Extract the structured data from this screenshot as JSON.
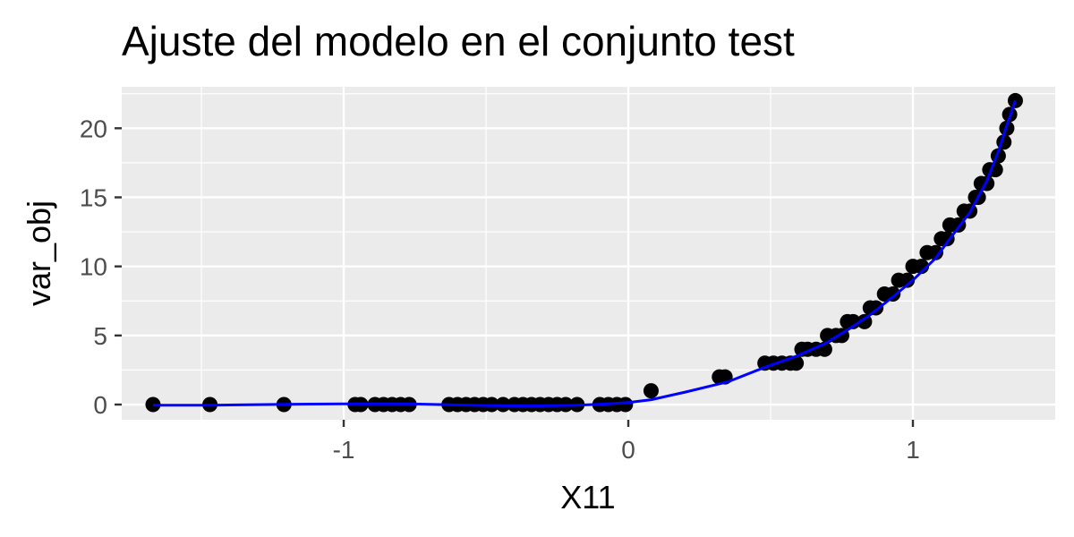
{
  "chart_data": {
    "type": "scatter",
    "title": "Ajuste del modelo en el conjunto test",
    "xlabel": "X11",
    "ylabel": "var_obj",
    "xlim": [
      -1.78,
      1.5
    ],
    "ylim": [
      -1.1,
      23
    ],
    "x_ticks": [
      {
        "value": -1,
        "label": "-1"
      },
      {
        "value": 0,
        "label": "0"
      },
      {
        "value": 1,
        "label": "1"
      }
    ],
    "y_ticks": [
      {
        "value": 0,
        "label": "0"
      },
      {
        "value": 5,
        "label": "5"
      },
      {
        "value": 10,
        "label": "10"
      },
      {
        "value": 15,
        "label": "15"
      },
      {
        "value": 20,
        "label": "20"
      }
    ],
    "grid": true,
    "colors": {
      "panel": "#ebebeb",
      "grid": "#ffffff",
      "points": "#000000",
      "fit_line": "#0000ff"
    },
    "points": [
      [
        -1.67,
        0
      ],
      [
        -1.47,
        0
      ],
      [
        -1.21,
        0
      ],
      [
        -0.96,
        0
      ],
      [
        -0.94,
        0
      ],
      [
        -0.89,
        0
      ],
      [
        -0.86,
        0
      ],
      [
        -0.83,
        0
      ],
      [
        -0.8,
        0
      ],
      [
        -0.77,
        0
      ],
      [
        -0.63,
        0
      ],
      [
        -0.6,
        0
      ],
      [
        -0.57,
        0
      ],
      [
        -0.54,
        0
      ],
      [
        -0.51,
        0
      ],
      [
        -0.48,
        0
      ],
      [
        -0.44,
        0
      ],
      [
        -0.4,
        0
      ],
      [
        -0.37,
        0
      ],
      [
        -0.34,
        0
      ],
      [
        -0.31,
        0
      ],
      [
        -0.28,
        0
      ],
      [
        -0.25,
        0
      ],
      [
        -0.22,
        0
      ],
      [
        -0.18,
        0
      ],
      [
        -0.1,
        0
      ],
      [
        -0.07,
        0
      ],
      [
        -0.04,
        0
      ],
      [
        -0.01,
        0
      ],
      [
        0.08,
        1
      ],
      [
        0.32,
        2
      ],
      [
        0.34,
        2
      ],
      [
        0.48,
        3
      ],
      [
        0.51,
        3
      ],
      [
        0.54,
        3
      ],
      [
        0.57,
        3
      ],
      [
        0.59,
        3
      ],
      [
        0.61,
        4
      ],
      [
        0.63,
        4
      ],
      [
        0.66,
        4
      ],
      [
        0.69,
        4
      ],
      [
        0.7,
        5
      ],
      [
        0.73,
        5
      ],
      [
        0.75,
        5
      ],
      [
        0.77,
        6
      ],
      [
        0.79,
        6
      ],
      [
        0.83,
        6
      ],
      [
        0.85,
        7
      ],
      [
        0.87,
        7
      ],
      [
        0.9,
        8
      ],
      [
        0.93,
        8
      ],
      [
        0.95,
        9
      ],
      [
        0.98,
        9
      ],
      [
        1.0,
        10
      ],
      [
        1.03,
        10
      ],
      [
        1.05,
        11
      ],
      [
        1.08,
        11
      ],
      [
        1.1,
        12
      ],
      [
        1.12,
        12
      ],
      [
        1.13,
        13
      ],
      [
        1.16,
        13
      ],
      [
        1.18,
        14
      ],
      [
        1.2,
        14
      ],
      [
        1.22,
        15
      ],
      [
        1.23,
        15
      ],
      [
        1.24,
        16
      ],
      [
        1.26,
        16
      ],
      [
        1.27,
        17
      ],
      [
        1.29,
        17
      ],
      [
        1.3,
        18
      ],
      [
        1.32,
        19
      ],
      [
        1.33,
        20
      ],
      [
        1.34,
        21
      ],
      [
        1.36,
        22
      ]
    ],
    "fit_line": [
      [
        -1.67,
        -0.05
      ],
      [
        -1.47,
        -0.05
      ],
      [
        -1.21,
        0.02
      ],
      [
        -0.96,
        0.05
      ],
      [
        -0.77,
        0.05
      ],
      [
        -0.63,
        -0.02
      ],
      [
        -0.48,
        -0.08
      ],
      [
        -0.34,
        -0.1
      ],
      [
        -0.18,
        -0.05
      ],
      [
        -0.07,
        0.05
      ],
      [
        0.0,
        0.15
      ],
      [
        0.08,
        0.35
      ],
      [
        0.2,
        0.9
      ],
      [
        0.35,
        1.65
      ],
      [
        0.48,
        2.7
      ],
      [
        0.59,
        3.5
      ],
      [
        0.69,
        4.4
      ],
      [
        0.77,
        5.4
      ],
      [
        0.85,
        6.5
      ],
      [
        0.93,
        7.8
      ],
      [
        1.0,
        9.0
      ],
      [
        1.08,
        10.6
      ],
      [
        1.13,
        12.0
      ],
      [
        1.2,
        13.9
      ],
      [
        1.26,
        16.2
      ],
      [
        1.3,
        18.3
      ],
      [
        1.33,
        20.2
      ],
      [
        1.36,
        22.0
      ]
    ]
  }
}
